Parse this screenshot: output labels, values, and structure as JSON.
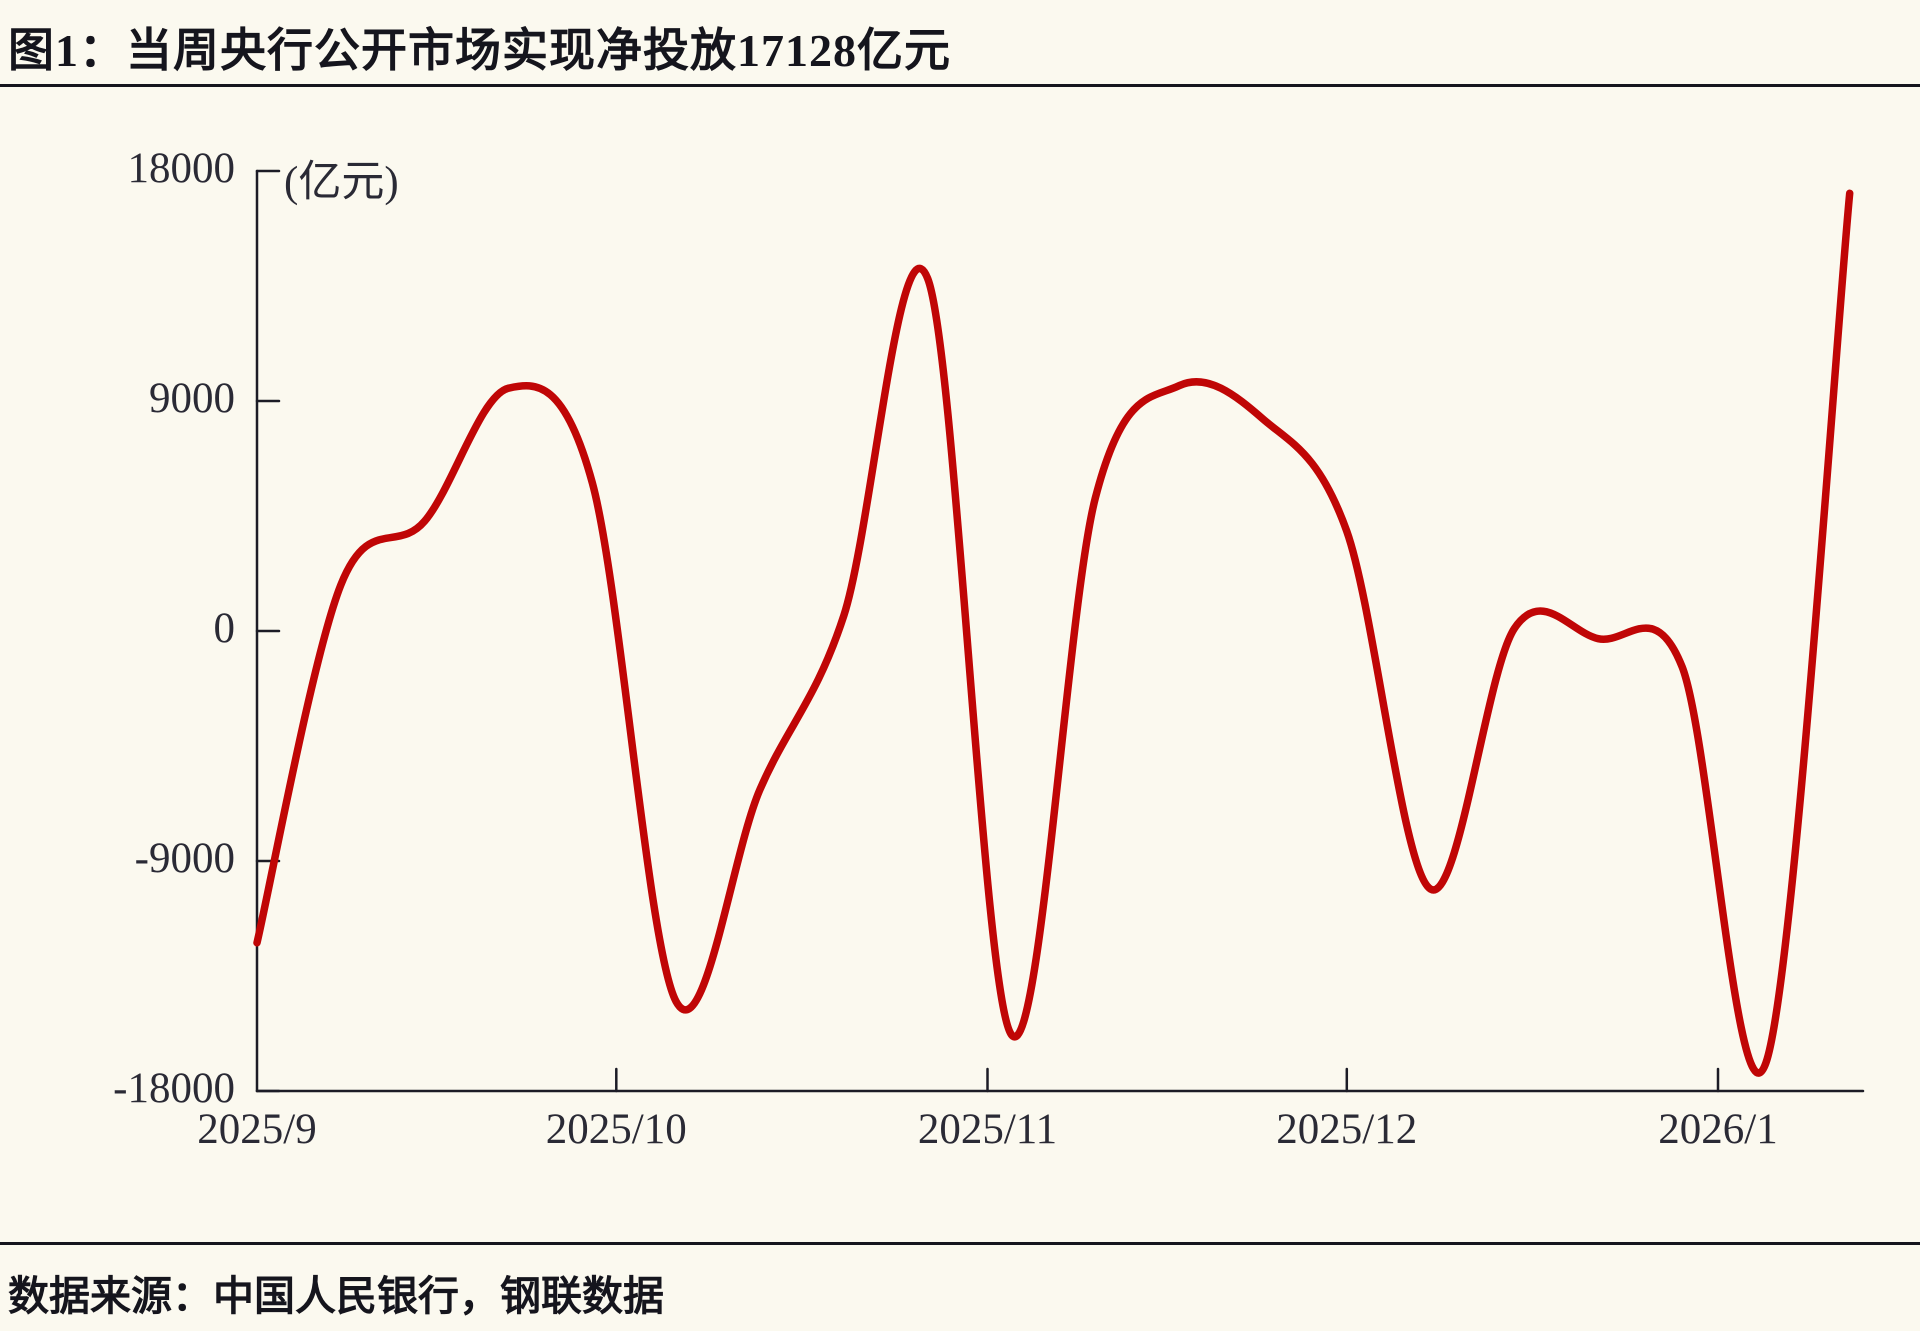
{
  "page": {
    "title": "图1：当周央行公开市场实现净投放17128亿元",
    "source": "数据来源：中国人民银行，钢联数据"
  },
  "colors": {
    "line": "#c00606",
    "axis": "#1c1c26",
    "text": "#2a2a35",
    "background": "#fbf9ef"
  },
  "chart_data": {
    "type": "line",
    "title": "当周央行公开市场实现净投放17128亿元",
    "ylabel": "(亿元)",
    "xlabel": "",
    "grid": false,
    "legend_position": "none",
    "ylim": [
      -18000,
      18000
    ],
    "y_ticks": [
      18000,
      9000,
      0,
      -9000,
      -18000
    ],
    "x_tick_labels": [
      "2025/9",
      "2025/10",
      "2025/11",
      "2025/12",
      "2026/1"
    ],
    "x_tick_dates": [
      "2025-09-01",
      "2025-10-01",
      "2025-11-01",
      "2025-12-01",
      "2026-01-01"
    ],
    "series": [
      {
        "name": "当周央行公开市场净投放",
        "points": [
          [
            "2025-09-01",
            -12200
          ],
          [
            "2025-09-08",
            1800
          ],
          [
            "2025-09-15",
            4300
          ],
          [
            "2025-09-22",
            9500
          ],
          [
            "2025-09-29",
            5800
          ],
          [
            "2025-10-06",
            -14500
          ],
          [
            "2025-10-13",
            -6200
          ],
          [
            "2025-10-20",
            600
          ],
          [
            "2025-10-27",
            13800
          ],
          [
            "2025-11-03",
            -15800
          ],
          [
            "2025-11-10",
            5200
          ],
          [
            "2025-11-17",
            9600
          ],
          [
            "2025-11-24",
            8300
          ],
          [
            "2025-12-01",
            3900
          ],
          [
            "2025-12-08",
            -10100
          ],
          [
            "2025-12-15",
            100
          ],
          [
            "2025-12-22",
            -300
          ],
          [
            "2025-12-29",
            -1400
          ],
          [
            "2026-01-05",
            -16900
          ],
          [
            "2026-01-12",
            17128
          ]
        ]
      }
    ]
  }
}
